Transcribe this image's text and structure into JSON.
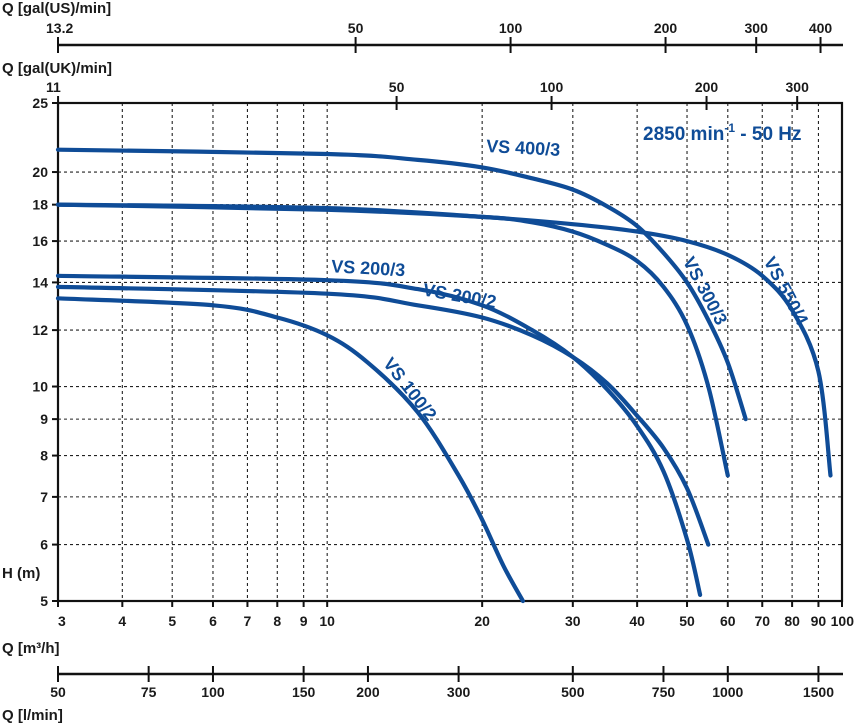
{
  "chart_data": {
    "type": "line",
    "x_scale": "log",
    "y_scale": "log",
    "xlabel": "Q [m³/h]",
    "ylabel": "H (m)",
    "xlim": [
      3,
      100
    ],
    "ylim": [
      5,
      25
    ],
    "grid": true,
    "x_ticks": [
      "3",
      "4",
      "5",
      "6",
      "7",
      "8",
      "9",
      "10",
      "20",
      "30",
      "40",
      "50",
      "60",
      "70",
      "80",
      "90",
      "100"
    ],
    "y_ticks": [
      "5",
      "6",
      "7",
      "8",
      "9",
      "10",
      "12",
      "14",
      "16",
      "18",
      "20",
      "25"
    ],
    "annotation": {
      "text": "2850 min",
      "superscript": "-1",
      "suffix": " - 50 Hz"
    },
    "series": [
      {
        "name": "VS 400/3",
        "label_angle": 3,
        "color": "#0f4c97",
        "x": [
          3,
          10,
          15,
          20,
          25,
          30,
          35,
          40,
          45,
          50,
          55,
          60,
          65
        ],
        "y": [
          21.5,
          21.2,
          20.8,
          20.3,
          19.6,
          18.9,
          17.9,
          16.8,
          15.4,
          14.0,
          12.4,
          10.8,
          9.0
        ]
      },
      {
        "name": "VS 550/4",
        "label_angle": 62,
        "color": "#0f4c97",
        "x": [
          3,
          10,
          20,
          30,
          40,
          50,
          60,
          70,
          80,
          90,
          95
        ],
        "y": [
          18.0,
          17.8,
          17.3,
          16.9,
          16.5,
          16.0,
          15.3,
          14.3,
          12.8,
          10.5,
          7.5
        ]
      },
      {
        "name": "VS 300/3",
        "label_angle": 62,
        "color": "#0f4c97",
        "x": [
          3,
          10,
          20,
          25,
          30,
          35,
          40,
          45,
          50,
          55,
          60
        ],
        "y": [
          18.0,
          17.7,
          17.3,
          17.0,
          16.5,
          15.8,
          15.0,
          13.8,
          12.2,
          10.0,
          7.5
        ]
      },
      {
        "name": "VS 200/3",
        "label_angle": 3,
        "color": "#0f4c97",
        "x": [
          3,
          10,
          15,
          20,
          25,
          30,
          35,
          40,
          45,
          50,
          53
        ],
        "y": [
          14.3,
          14.1,
          13.7,
          13.0,
          12.0,
          11.0,
          9.9,
          8.8,
          7.6,
          6.1,
          5.1
        ]
      },
      {
        "name": "VS 200/2",
        "label_angle": 10,
        "color": "#0f4c97",
        "x": [
          3,
          10,
          15,
          20,
          25,
          30,
          35,
          40,
          45,
          50,
          55
        ],
        "y": [
          13.8,
          13.5,
          13.0,
          12.5,
          11.8,
          11.0,
          10.1,
          9.1,
          8.2,
          7.2,
          6.0
        ]
      },
      {
        "name": "VS 100/2",
        "label_angle": 52,
        "color": "#0f4c97",
        "x": [
          3,
          6,
          8,
          10,
          12,
          15,
          18,
          20,
          22,
          24
        ],
        "y": [
          13.3,
          13.0,
          12.5,
          11.8,
          10.8,
          9.2,
          7.5,
          6.5,
          5.6,
          5.0
        ]
      }
    ],
    "secondary_axes": [
      {
        "label": "Q [gal(US)/min]",
        "unit_label_main": "Q [gal(US)/min]",
        "conversion_to_m3h": 0.2271,
        "ticks": [
          "13.2",
          "50",
          "100",
          "200",
          "300",
          "400"
        ],
        "tick_values": [
          13.2,
          50,
          100,
          200,
          300,
          400
        ]
      },
      {
        "label": "Q [gal(UK)/min]",
        "unit_label_main": "Q [gal(UK)/min]",
        "conversion_to_m3h": 0.2728,
        "ticks": [
          "11",
          "50",
          "100",
          "200",
          "300"
        ],
        "tick_values": [
          11,
          50,
          100,
          200,
          300
        ]
      },
      {
        "label": "Q [l/min]",
        "unit_label_main": "Q [l/min]",
        "conversion_to_m3h": 0.06,
        "ticks": [
          "50",
          "75",
          "100",
          "150",
          "200",
          "300",
          "500",
          "750",
          "1000",
          "1500"
        ],
        "tick_values": [
          50,
          75,
          100,
          150,
          200,
          300,
          500,
          750,
          1000,
          1500
        ]
      }
    ]
  }
}
